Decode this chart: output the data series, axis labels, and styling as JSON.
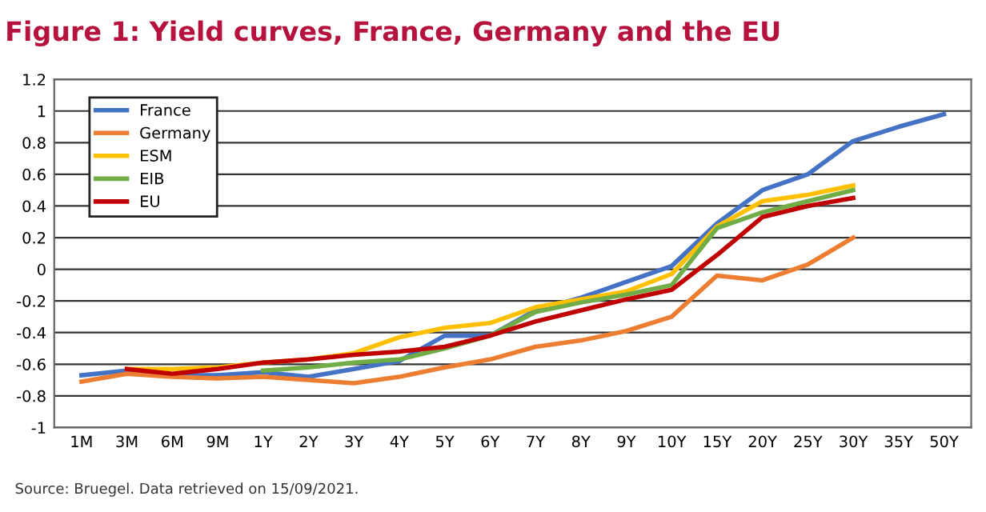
{
  "chart_data": {
    "type": "line",
    "title": "Figure 1: Yield curves, France, Germany and the EU",
    "categories": [
      "1M",
      "3M",
      "6M",
      "9M",
      "1Y",
      "2Y",
      "3Y",
      "4Y",
      "5Y",
      "6Y",
      "7Y",
      "8Y",
      "9Y",
      "10Y",
      "15Y",
      "20Y",
      "25Y",
      "30Y",
      "35Y",
      "50Y"
    ],
    "series": [
      {
        "name": "France",
        "color": "#4472c4",
        "values": [
          -0.67,
          -0.64,
          -0.67,
          -0.67,
          -0.65,
          -0.68,
          -0.63,
          -0.58,
          -0.42,
          -0.42,
          -0.26,
          -0.18,
          -0.08,
          0.02,
          0.29,
          0.5,
          0.6,
          0.81,
          0.9,
          0.98
        ]
      },
      {
        "name": "Germany",
        "color": "#ed7d31",
        "values": [
          -0.71,
          -0.66,
          -0.68,
          -0.69,
          -0.68,
          -0.7,
          -0.72,
          -0.68,
          -0.62,
          -0.57,
          -0.49,
          -0.45,
          -0.39,
          -0.3,
          -0.04,
          -0.07,
          0.03,
          0.2,
          null,
          null
        ]
      },
      {
        "name": "ESM",
        "color": "#ffc000",
        "values": [
          null,
          -0.63,
          -0.63,
          -0.62,
          -0.59,
          -0.57,
          -0.53,
          -0.43,
          -0.37,
          -0.34,
          -0.24,
          -0.19,
          -0.14,
          -0.03,
          0.27,
          0.43,
          0.47,
          0.53,
          null,
          null
        ]
      },
      {
        "name": "EIB",
        "color": "#70ad47",
        "values": [
          null,
          null,
          null,
          null,
          -0.64,
          -0.62,
          -0.59,
          -0.57,
          -0.5,
          -0.42,
          -0.27,
          -0.21,
          -0.16,
          -0.1,
          0.26,
          0.36,
          0.43,
          0.5,
          null,
          null
        ]
      },
      {
        "name": "EU",
        "color": "#c00000",
        "values": [
          null,
          -0.63,
          -0.66,
          -0.63,
          -0.59,
          -0.57,
          -0.54,
          -0.52,
          -0.49,
          -0.42,
          -0.33,
          -0.26,
          -0.19,
          -0.13,
          0.09,
          0.33,
          0.4,
          0.45,
          null,
          null
        ]
      }
    ],
    "ylim": [
      -1,
      1.2
    ],
    "yticks": [
      -1,
      -0.8,
      -0.6,
      -0.4,
      -0.2,
      0,
      0.2,
      0.4,
      0.6,
      0.8,
      1,
      1.2
    ],
    "grid": "y",
    "legend": "top left",
    "marker": "none",
    "line_style": "solid",
    "annotations": [
      "Source: Bruegel. Data retrieved on 15/09/2021."
    ]
  }
}
